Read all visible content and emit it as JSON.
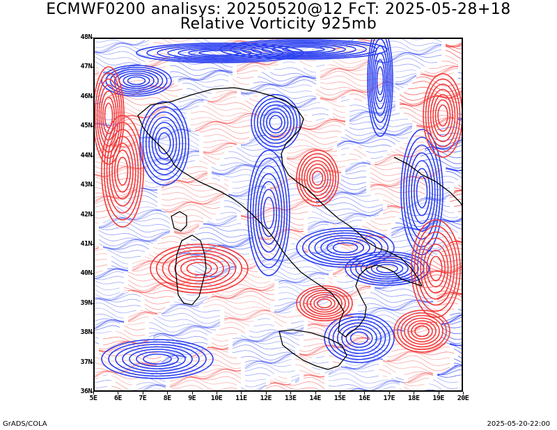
{
  "title_line1": "ECMWF0200 analisys: 20250520@12 FcT: 2025-05-28+18",
  "title_line2": "Relative Vorticity 925mb",
  "footer_left": "GrADS/COLA",
  "footer_right": "2025-05-20-22:00",
  "lat_labels": [
    "48N",
    "47N",
    "46N",
    "45N",
    "44N",
    "43N",
    "42N",
    "41N",
    "40N",
    "39N",
    "38N",
    "37N",
    "36N"
  ],
  "lon_labels": [
    "5E",
    "6E",
    "7E",
    "8E",
    "9E",
    "10E",
    "11E",
    "12E",
    "13E",
    "14E",
    "15E",
    "16E",
    "17E",
    "18E",
    "19E",
    "20E"
  ],
  "colors": {
    "positive_contours": "#2a3ff0",
    "negative_contours": "#f23a3a",
    "coastline": "#000000",
    "background": "#ffffff"
  }
}
